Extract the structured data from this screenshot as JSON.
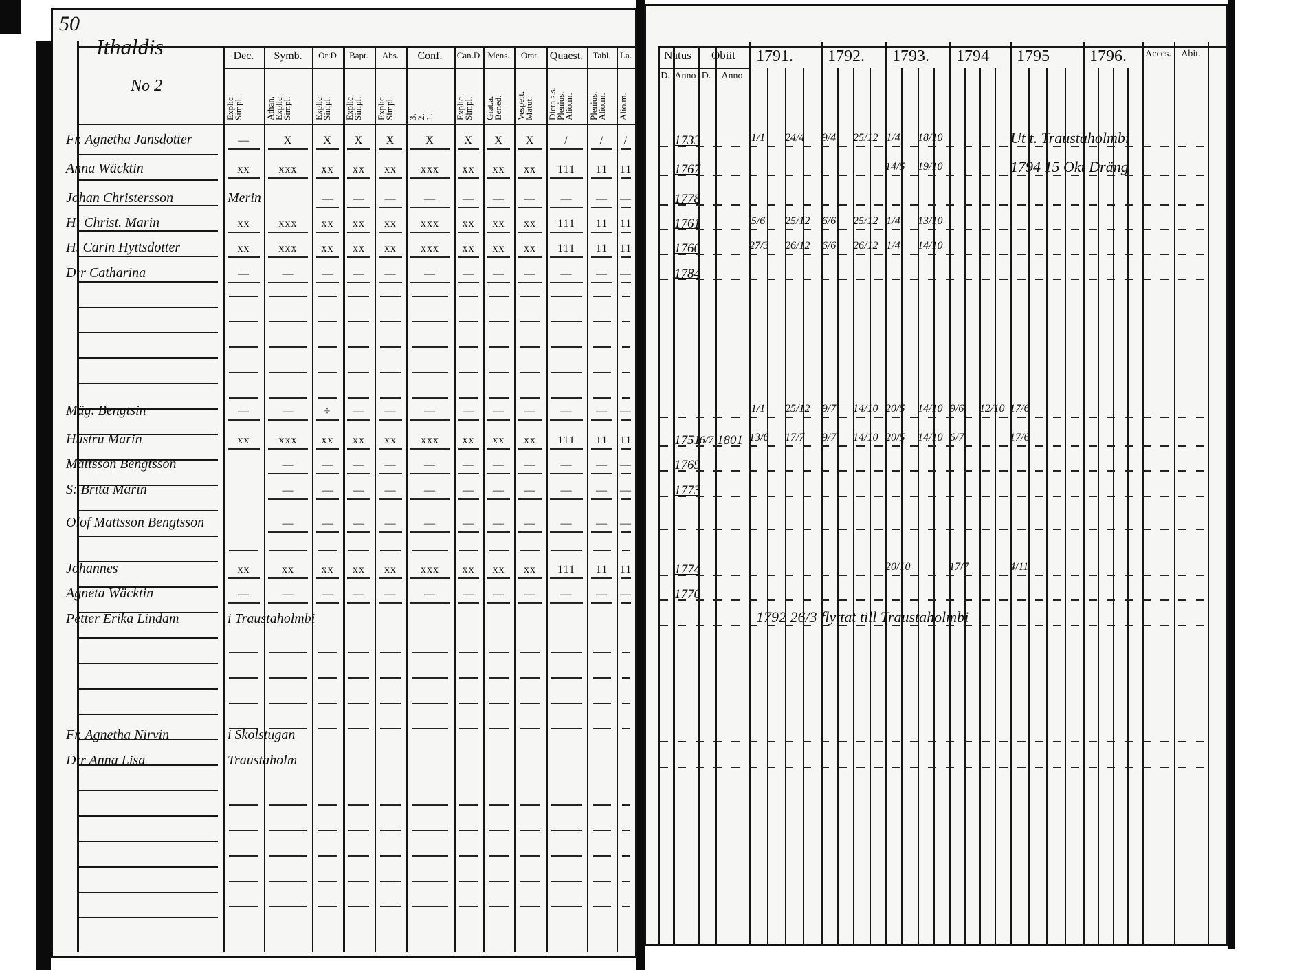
{
  "page_number": "50",
  "left_page": {
    "heading": "Ithaldis",
    "subheading": "No 2",
    "columns": [
      {
        "top": "Dec.",
        "sub": "Explic.\nSimpl."
      },
      {
        "top": "Symb.",
        "sub": "Athan.\nExplic.\nSimpl."
      },
      {
        "top": "Or:D",
        "sub": "Explic.\nSimpl."
      },
      {
        "top": "Bapt.",
        "sub": "Explic.\nSimpl."
      },
      {
        "top": "Abs.",
        "sub": "Explic.\nSimpl."
      },
      {
        "top": "Conf.",
        "sub": "3.\n2.\n1."
      },
      {
        "top": "Can.D",
        "sub": "Explic.\nSimpl."
      },
      {
        "top": "Mens.",
        "sub": "Grat.a.\nBened."
      },
      {
        "top": "Orat.",
        "sub": "Vespert.\nMatut."
      },
      {
        "top": "Quaest.",
        "sub": "Dicta.s.s.\nPlenius.\nAlio.m."
      },
      {
        "top": "Tabl.",
        "sub": "Plenius.\nAlio.m."
      },
      {
        "top": "La.",
        "sub": "Alio.m."
      }
    ],
    "rows": [
      {
        "name": "Fr. Agnetha Jansdotter",
        "marks": [
          "—",
          "X",
          "X",
          "X",
          "X",
          "X",
          "X",
          "X",
          "X",
          "/",
          "/",
          "/"
        ]
      },
      {
        "name": "Anna Wäcktin",
        "marks": [
          "xx",
          "xxx",
          "xx",
          "xx",
          "xx",
          "xxx",
          "xx",
          "xx",
          "xx",
          "111",
          "11",
          "11"
        ]
      },
      {
        "name": "Johan Christersson",
        "note": "Merin",
        "marks": [
          "",
          "",
          "—",
          "—",
          "—",
          "—",
          "—",
          "—",
          "—",
          "—",
          "—",
          "—"
        ]
      },
      {
        "name": "H: Christ. Marin",
        "marks": [
          "xx",
          "xxx",
          "xx",
          "xx",
          "xx",
          "xxx",
          "xx",
          "xx",
          "xx",
          "111",
          "11",
          "11"
        ]
      },
      {
        "name": "H. Carin Hyttsdotter",
        "marks": [
          "xx",
          "xxx",
          "xx",
          "xx",
          "xx",
          "xxx",
          "xx",
          "xx",
          "xx",
          "111",
          "11",
          "11"
        ]
      },
      {
        "name": "D:r Catharina",
        "marks": [
          "—",
          "—",
          "—",
          "—",
          "—",
          "—",
          "—",
          "—",
          "—",
          "—",
          "—",
          "—"
        ]
      },
      {
        "name": "Mäg. Bengtsin",
        "marks": [
          "—",
          "—",
          "÷",
          "—",
          "—",
          "—",
          "—",
          "—",
          "—",
          "—",
          "—",
          "—"
        ]
      },
      {
        "name": "Hustru Marin",
        "marks": [
          "xx",
          "xxx",
          "xx",
          "xx",
          "xx",
          "xxx",
          "xx",
          "xx",
          "xx",
          "111",
          "11",
          "11"
        ]
      },
      {
        "name": "Mattsson Bengtsson",
        "marks": [
          "",
          "—",
          "—",
          "—",
          "—",
          "—",
          "—",
          "—",
          "—",
          "—",
          "—",
          "—"
        ]
      },
      {
        "name": "S: Brita Marin",
        "marks": [
          "",
          "—",
          "—",
          "—",
          "—",
          "—",
          "—",
          "—",
          "—",
          "—",
          "—",
          "—"
        ]
      },
      {
        "name": "Olof Mattsson Bengtsson",
        "marks": [
          "",
          "—",
          "—",
          "—",
          "—",
          "—",
          "—",
          "—",
          "—",
          "—",
          "—",
          "—"
        ]
      },
      {
        "name": "Johannes",
        "marks": [
          "xx",
          "xx",
          "xx",
          "xx",
          "xx",
          "xxx",
          "xx",
          "xx",
          "xx",
          "111",
          "11",
          "11"
        ]
      },
      {
        "name": "Agneta Wäcktin",
        "marks": [
          "—",
          "—",
          "—",
          "—",
          "—",
          "—",
          "—",
          "—",
          "—",
          "—",
          "—",
          "—"
        ]
      },
      {
        "name": "Petter Erika Lindam",
        "note": "i Traustaholmbi",
        "marks": [
          "",
          "",
          "",
          "",
          "",
          "",
          "",
          "",
          "",
          "",
          "",
          ""
        ]
      },
      {
        "name": "Fr. Agnetha Nirvin",
        "note": "i Skolstugan",
        "marks": [
          "",
          "",
          "",
          "",
          "",
          "",
          "",
          "",
          "",
          "",
          "",
          ""
        ]
      },
      {
        "name": "D:r Anna Lisa",
        "note": "Traustaholm",
        "marks": [
          "",
          "",
          "",
          "",
          "",
          "",
          "",
          "",
          "",
          "",
          "",
          ""
        ]
      }
    ]
  },
  "right_page": {
    "natus": {
      "top": "Natus",
      "d": "D.",
      "anno": "Anno"
    },
    "obiit": {
      "top": "Obiit",
      "d": "D.",
      "anno": "Anno"
    },
    "years": [
      "1791.",
      "1792.",
      "1793.",
      "1794",
      "1795",
      "1796."
    ],
    "acces": "Acces.",
    "abit": "Abit.",
    "rows": [
      {
        "born": "1733",
        "entries": {
          "1791": [
            "1/1",
            "24/4"
          ],
          "1792": [
            "9/4",
            "25/12"
          ],
          "1793": [
            "1/4",
            "18/10"
          ]
        },
        "note": "Ut t. Traustaholmbi"
      },
      {
        "born": "1767",
        "entries": {
          "1793": [
            "14/5",
            "19/10"
          ]
        },
        "note": "1794 15 Okt Dräng"
      },
      {
        "born": "1778",
        "entries": {}
      },
      {
        "born": "1761",
        "entries": {
          "1791": [
            "5/6",
            "25/12"
          ],
          "1792": [
            "6/6",
            "25/12"
          ],
          "1793": [
            "1/4",
            "13/10"
          ]
        }
      },
      {
        "born": "1760",
        "entries": {
          "1791": [
            "27/3",
            "26/12"
          ],
          "1792": [
            "6/6",
            "26/12"
          ],
          "1793": [
            "1/4",
            "14/10"
          ]
        }
      },
      {
        "born": "1784",
        "entries": {}
      },
      {
        "born": "",
        "entries": {
          "1791": [
            "1/1",
            "25/12"
          ],
          "1792": [
            "9/7",
            "14/10"
          ],
          "1793": [
            "20/5",
            "14/10"
          ],
          "1794": [
            "9/6",
            "12/10"
          ],
          "1795": [
            "17/6"
          ]
        }
      },
      {
        "born": "1751",
        "obiit_d": "6/7",
        "obiit_anno": "1801",
        "entries": {
          "1791": [
            "13/6",
            "17/7"
          ],
          "1792": [
            "9/7",
            "14/10"
          ],
          "1793": [
            "20/5",
            "14/10"
          ],
          "1794": [
            "6/7"
          ],
          "1795": [
            "17/6"
          ]
        }
      },
      {
        "born": "1769",
        "entries": {}
      },
      {
        "born": "1773",
        "entries": {}
      },
      {
        "born": "",
        "entries": {}
      },
      {
        "born": "1774",
        "entries": {
          "1793": [
            "20/10"
          ],
          "1794": [
            "17/7"
          ],
          "1795": [
            "4/11"
          ]
        }
      },
      {
        "born": "1770",
        "entries": {}
      },
      {
        "born": "",
        "entries": {},
        "note": "1792 26/3 flyttat till Traustaholmbi"
      },
      {
        "born": "",
        "entries": {}
      },
      {
        "born": "",
        "entries": {}
      }
    ]
  }
}
